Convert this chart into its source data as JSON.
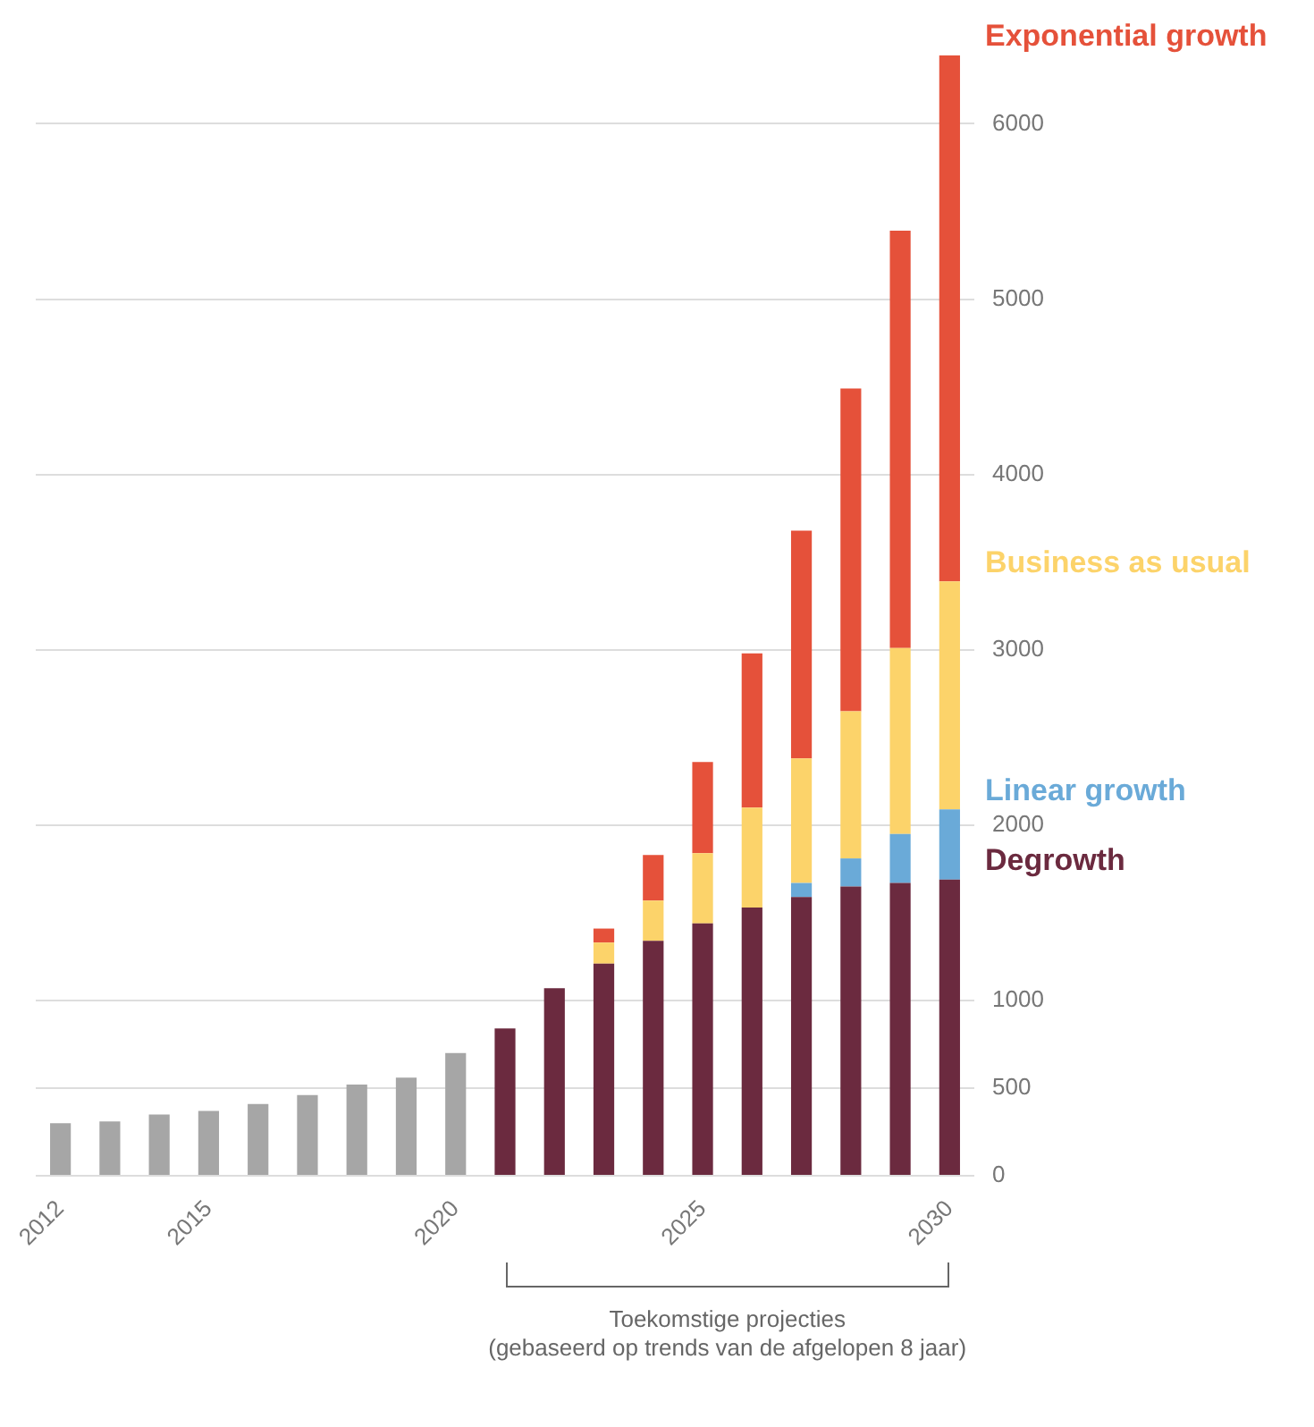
{
  "chart_data": {
    "type": "bar",
    "stacked": true,
    "categories": [
      "2012",
      null,
      null,
      "2015",
      null,
      null,
      null,
      null,
      "2020",
      null,
      null,
      null,
      null,
      "2025",
      null,
      null,
      null,
      null,
      "2030"
    ],
    "series": [
      {
        "color": "#a6a6a6",
        "values": [
          300,
          310,
          350,
          370,
          410,
          460,
          520,
          560,
          700,
          null,
          null,
          null,
          null,
          null,
          null,
          null,
          null,
          null,
          null
        ]
      },
      {
        "name": "Degrowth",
        "color": "#6b2a3f",
        "values": [
          null,
          null,
          null,
          null,
          null,
          null,
          null,
          null,
          null,
          840,
          1070,
          1210,
          1340,
          1440,
          1530,
          1590,
          1650,
          1670,
          1690
        ]
      },
      {
        "name": "Linear growth",
        "color": "#6aaad8",
        "values": [
          null,
          null,
          null,
          null,
          null,
          null,
          null,
          null,
          null,
          null,
          null,
          null,
          null,
          null,
          null,
          80,
          160,
          280,
          400
        ]
      },
      {
        "name": "Business as usual",
        "color": "#fcd36a",
        "values": [
          null,
          null,
          null,
          null,
          null,
          null,
          null,
          null,
          null,
          null,
          null,
          120,
          230,
          400,
          570,
          710,
          840,
          1060,
          1300
        ]
      },
      {
        "name": "Exponential growth",
        "color": "#e5513a",
        "values": [
          null,
          null,
          null,
          null,
          null,
          null,
          null,
          null,
          null,
          null,
          null,
          80,
          260,
          520,
          880,
          1300,
          1840,
          2380,
          3000
        ]
      }
    ],
    "ylim": [
      0,
      6400
    ],
    "yticks": [
      0,
      500,
      1000,
      2000,
      3000,
      4000,
      5000,
      6000
    ],
    "grid": "y",
    "legend": false,
    "annotations": [
      "Toekomstige projecties\n(gebaseerd op trends van de afgelopen 8 jaar)"
    ]
  }
}
